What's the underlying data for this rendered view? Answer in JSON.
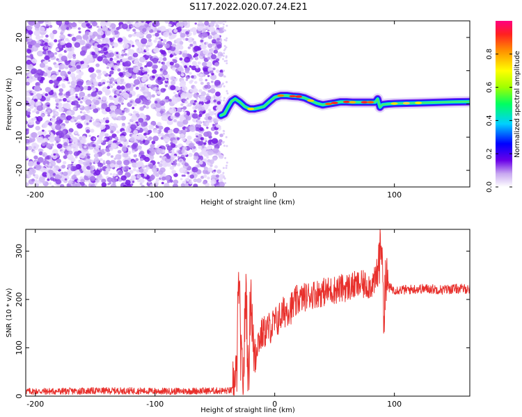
{
  "title": "S117.2022.020.07.24.E21",
  "chart_data": [
    {
      "type": "heatmap",
      "xlabel": "Height of straight line (km)",
      "ylabel": "Frequency (Hz)",
      "xlim": [
        -208,
        163
      ],
      "ylim": [
        -25,
        25
      ],
      "xticks": [
        -200,
        -100,
        0,
        100
      ],
      "yticks": [
        -20,
        -10,
        0,
        10,
        20
      ],
      "noise_region_x": [
        -208,
        -44
      ],
      "signal_line": {
        "x": [
          -45,
          -42,
          -39,
          -36,
          -33,
          -29,
          -25,
          -21,
          -17,
          -13,
          -9,
          -5,
          0,
          5,
          10,
          15,
          20,
          25,
          30,
          35,
          40,
          45,
          50,
          55,
          60,
          65,
          70,
          75,
          80,
          84,
          86,
          88,
          90,
          95,
          100,
          110,
          120,
          130,
          140,
          150,
          163
        ],
        "y": [
          -3.5,
          -3.0,
          -1.0,
          0.8,
          1.5,
          0.5,
          -0.8,
          -1.5,
          -1.5,
          -1.2,
          -0.8,
          0.5,
          2.0,
          2.5,
          2.5,
          2.3,
          2.2,
          1.8,
          1.0,
          0.2,
          -0.3,
          0.0,
          0.3,
          0.6,
          0.6,
          0.5,
          0.5,
          0.5,
          0.5,
          0.5,
          1.5,
          -1.0,
          -0.2,
          0.0,
          0.1,
          0.2,
          0.3,
          0.4,
          0.5,
          0.6,
          0.7
        ]
      },
      "colorbar": {
        "label": "Normalized spectral amplitude",
        "range": [
          0.0,
          1.0
        ],
        "ticks": [
          "0.0",
          "0.2",
          "0.4",
          "0.6",
          "0.8"
        ]
      }
    },
    {
      "type": "line",
      "xlabel": "Height of straight line (km)",
      "ylabel": "SNR (10 * v/v)",
      "xlim": [
        -208,
        163
      ],
      "ylim": [
        0,
        345
      ],
      "xticks": [
        -200,
        -100,
        0,
        100
      ],
      "yticks": [
        0,
        100,
        200,
        300
      ],
      "color": "#e8302c",
      "series": [
        {
          "x": [
            -208,
            -180,
            -150,
            -120,
            -90,
            -60,
            -40,
            -35,
            -32,
            -30,
            -28,
            -26,
            -24,
            -22,
            -20,
            -18,
            -15,
            -10,
            -5,
            0,
            5,
            10,
            15,
            20,
            25,
            30,
            40,
            50,
            60,
            70,
            80,
            85,
            88,
            90,
            91,
            92,
            95,
            100,
            110,
            120,
            130,
            140,
            150,
            163
          ],
          "y": [
            10,
            10,
            11,
            11,
            10,
            11,
            11,
            12,
            30,
            250,
            60,
            40,
            240,
            20,
            235,
            90,
            110,
            130,
            140,
            150,
            165,
            180,
            185,
            200,
            205,
            210,
            215,
            220,
            225,
            230,
            230,
            240,
            300,
            330,
            120,
            240,
            225,
            220,
            220,
            222,
            222,
            220,
            222,
            222
          ]
        }
      ]
    }
  ]
}
